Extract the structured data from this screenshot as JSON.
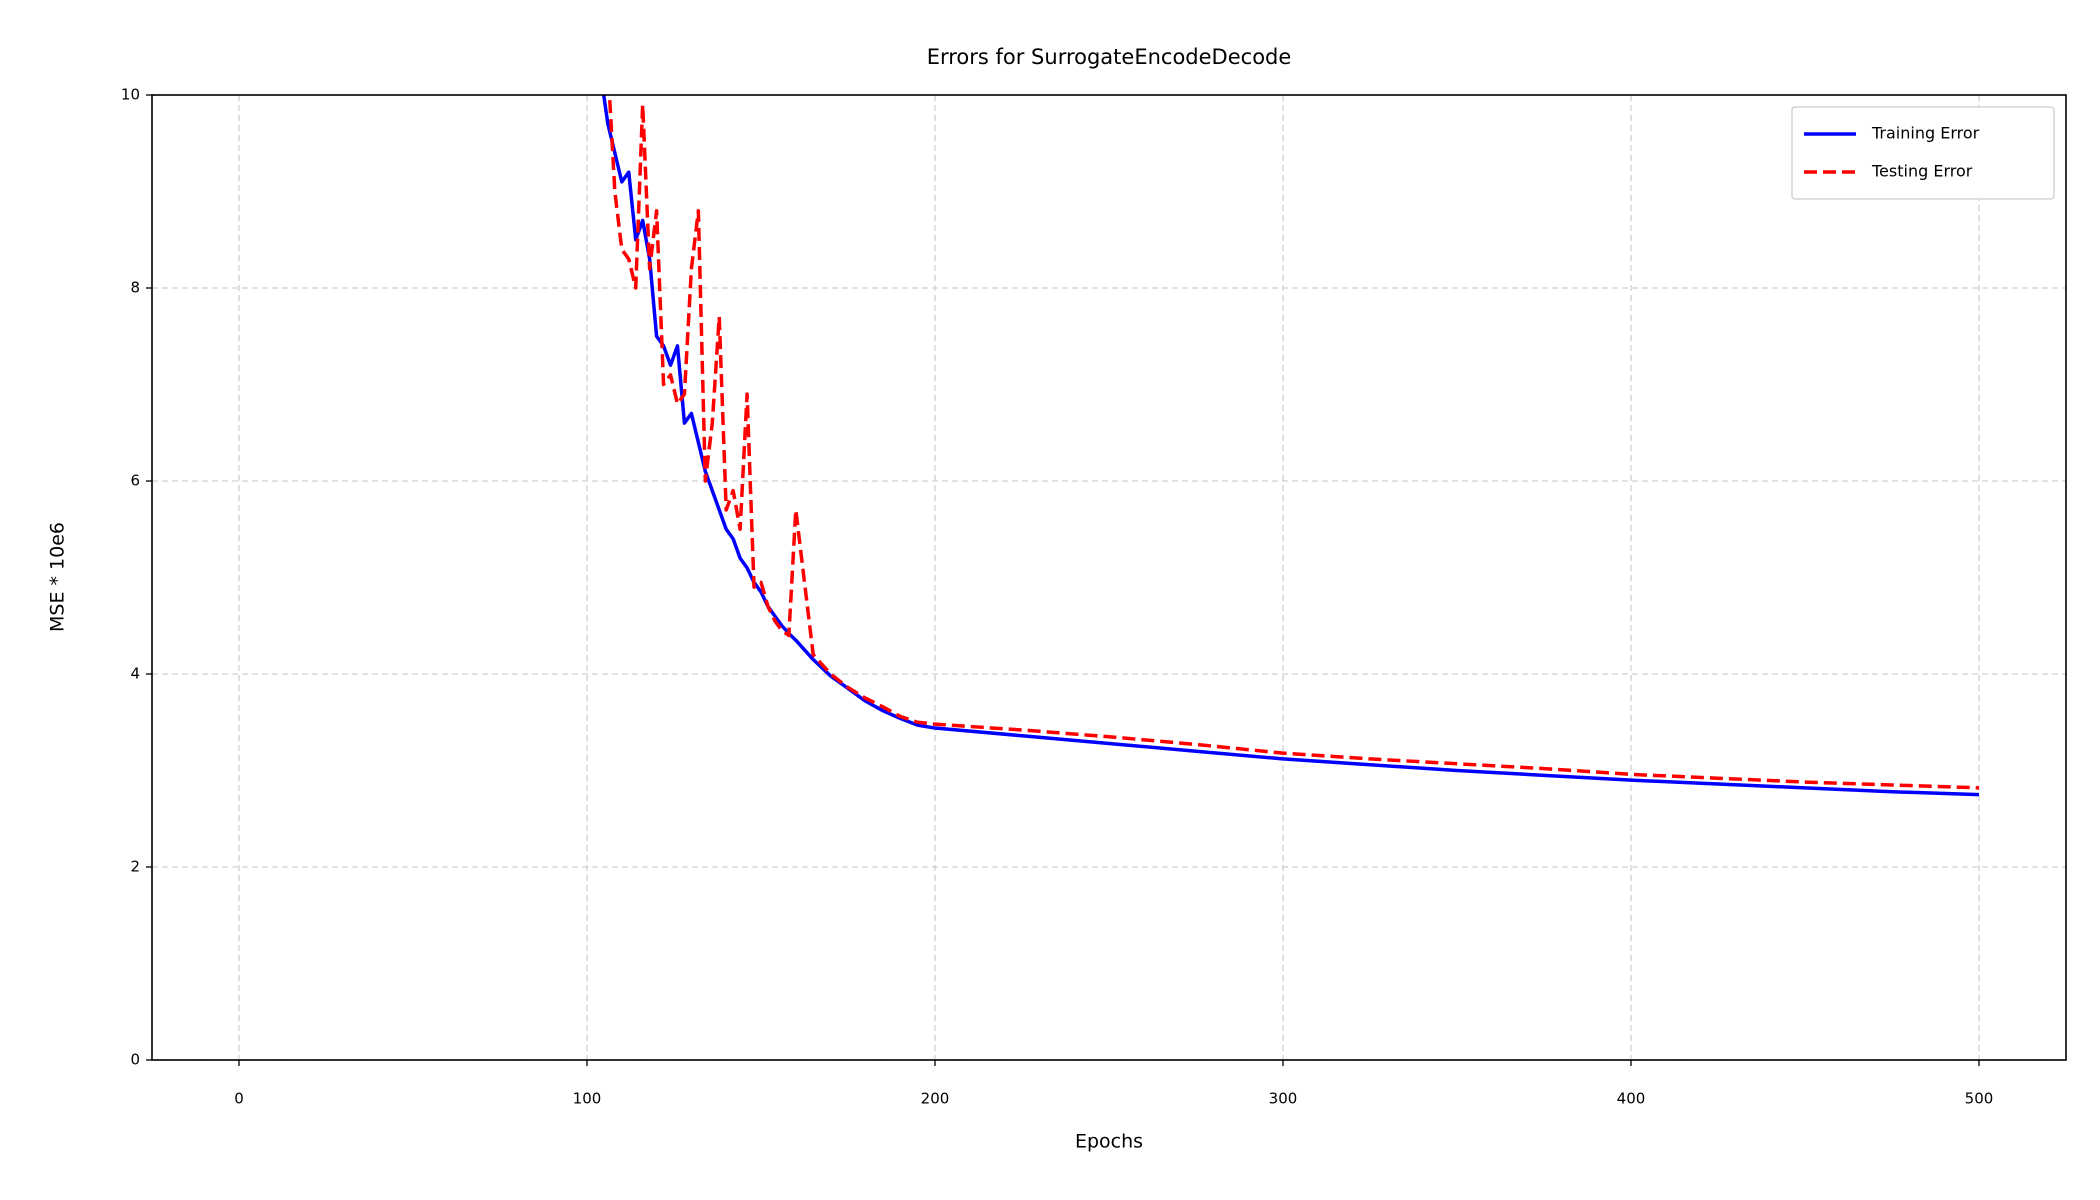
{
  "chart_data": {
    "type": "line",
    "title": "Errors for SurrogateEncodeDecode",
    "xlabel": "Epochs",
    "ylabel": "MSE * 10e6",
    "x": [
      100,
      104,
      106,
      108,
      110,
      112,
      114,
      116,
      118,
      120,
      122,
      124,
      126,
      128,
      130,
      132,
      134,
      136,
      138,
      140,
      142,
      144,
      146,
      148,
      150,
      152,
      154,
      156,
      158,
      160,
      165,
      170,
      175,
      180,
      185,
      190,
      195,
      200,
      225,
      250,
      275,
      300,
      325,
      350,
      375,
      400,
      425,
      450,
      475,
      500
    ],
    "series": [
      {
        "name": "Training Error",
        "color": "#0000ff",
        "dash": false,
        "values": [
          10.8,
          10.2,
          9.7,
          9.4,
          9.1,
          9.2,
          8.5,
          8.7,
          8.3,
          7.5,
          7.4,
          7.2,
          7.4,
          6.6,
          6.7,
          6.4,
          6.1,
          5.9,
          5.7,
          5.5,
          5.4,
          5.2,
          5.1,
          4.95,
          4.85,
          4.7,
          4.6,
          4.5,
          4.42,
          4.35,
          4.15,
          3.98,
          3.85,
          3.72,
          3.62,
          3.54,
          3.47,
          3.44,
          3.36,
          3.28,
          3.2,
          3.12,
          3.06,
          3.0,
          2.95,
          2.9,
          2.86,
          2.82,
          2.78,
          2.75
        ]
      },
      {
        "name": "Testing Error",
        "color": "#ff0000",
        "dash": true,
        "values": [
          11.5,
          10.9,
          10.3,
          9.0,
          8.4,
          8.3,
          8.0,
          9.9,
          8.2,
          8.8,
          7.0,
          7.1,
          6.8,
          6.9,
          8.2,
          8.8,
          6.0,
          6.6,
          7.7,
          5.7,
          5.9,
          5.5,
          6.9,
          4.9,
          4.95,
          4.7,
          4.55,
          4.45,
          4.4,
          5.7,
          4.2,
          4.0,
          3.86,
          3.75,
          3.66,
          3.56,
          3.5,
          3.48,
          3.42,
          3.35,
          3.27,
          3.18,
          3.12,
          3.07,
          3.02,
          2.96,
          2.92,
          2.88,
          2.85,
          2.82
        ]
      }
    ],
    "xlim": [
      -25,
      525
    ],
    "ylim": [
      0,
      10
    ],
    "xticks": [
      0,
      100,
      200,
      300,
      400,
      500
    ],
    "yticks": [
      0,
      2,
      4,
      6,
      8,
      10
    ],
    "grid": true,
    "legend": "upper right"
  }
}
